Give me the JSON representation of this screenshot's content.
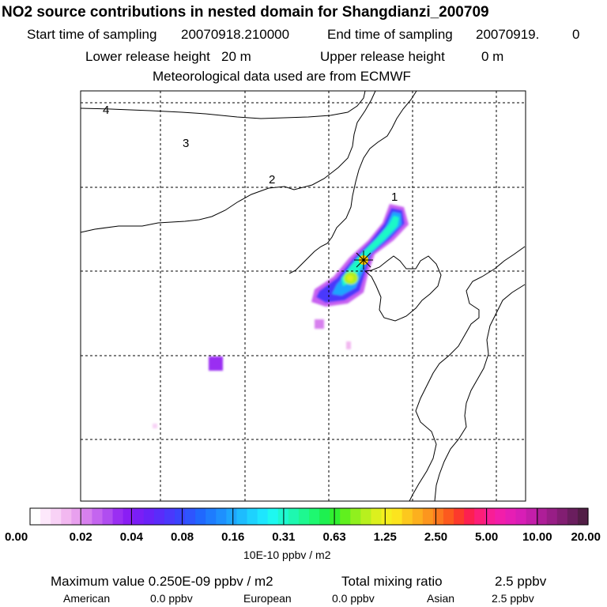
{
  "header": {
    "title": "NO2 source contributions in nested domain for Shangdianzi_200709",
    "start_label": "Start time of sampling",
    "start_value": "20070918.210000",
    "end_label": "End time of sampling",
    "end_value": "20070919.",
    "end_suffix": "0",
    "lower_label": "Lower release height",
    "lower_value": "20 m",
    "upper_label": "Upper release height",
    "upper_value": "0 m",
    "met_line": "Meteorological data used are from ECMWF"
  },
  "chart_data": {
    "type": "heatmap",
    "title": "NO2 source contributions in nested domain for Shangdianzi_200709",
    "region_labels": [
      "1",
      "2",
      "3",
      "4"
    ],
    "station_marker": "star",
    "colorbar": {
      "unit": "10E-10 ppbv / m2",
      "ticks": [
        "0.00",
        "0.02",
        "0.04",
        "0.08",
        "0.16",
        "0.31",
        "0.63",
        "1.25",
        "2.50",
        "5.00",
        "10.00",
        "20.00"
      ],
      "colors": [
        "#ffffff",
        "#fde8fb",
        "#f8d2f6",
        "#f2b8f0",
        "#e8a0ee",
        "#d780ee",
        "#c465ef",
        "#b04df0",
        "#9a2ff2",
        "#8a1ef4",
        "#7a1ef6",
        "#6a22f8",
        "#5a2cfa",
        "#4a38fc",
        "#3a44fd",
        "#2e55fe",
        "#2068fe",
        "#1e7cfe",
        "#1e90fe",
        "#1ea6fe",
        "#1ebcfe",
        "#1ed2fe",
        "#1ee6fe",
        "#1ef8f0",
        "#1ef8d0",
        "#1ef8b0",
        "#1ef890",
        "#1ef870",
        "#1ef050",
        "#30f030",
        "#60f01e",
        "#90f01e",
        "#b8f01e",
        "#dcf01e",
        "#f5f01e",
        "#fce41e",
        "#fcc81e",
        "#fcb01e",
        "#fc961e",
        "#fc781e",
        "#fc5a1e",
        "#fc3a2c",
        "#fc2050",
        "#fc1e78",
        "#f81e96",
        "#f21eaa",
        "#e61eb4",
        "#d81eb6",
        "#c41eaa",
        "#ae1e98",
        "#981e86",
        "#821e72",
        "#6a1e5e",
        "#521e46"
      ]
    },
    "max_line": "Maximum value  0.250E-09 ppbv / m2",
    "total_label": "Total mixing ratio",
    "total_value": "2.5 ppbv",
    "sources": [
      {
        "name": "American",
        "value": "0.0 ppbv"
      },
      {
        "name": "European",
        "value": "0.0 ppbv"
      },
      {
        "name": "Asian",
        "value": "2.5 ppbv"
      }
    ],
    "plumes": [
      {
        "level": 0.02,
        "desc": "faint patch"
      },
      {
        "level": 0.04,
        "desc": "purple blob"
      },
      {
        "level": 0.16,
        "desc": "plume body"
      },
      {
        "level": 0.63,
        "desc": "plume core"
      }
    ]
  }
}
